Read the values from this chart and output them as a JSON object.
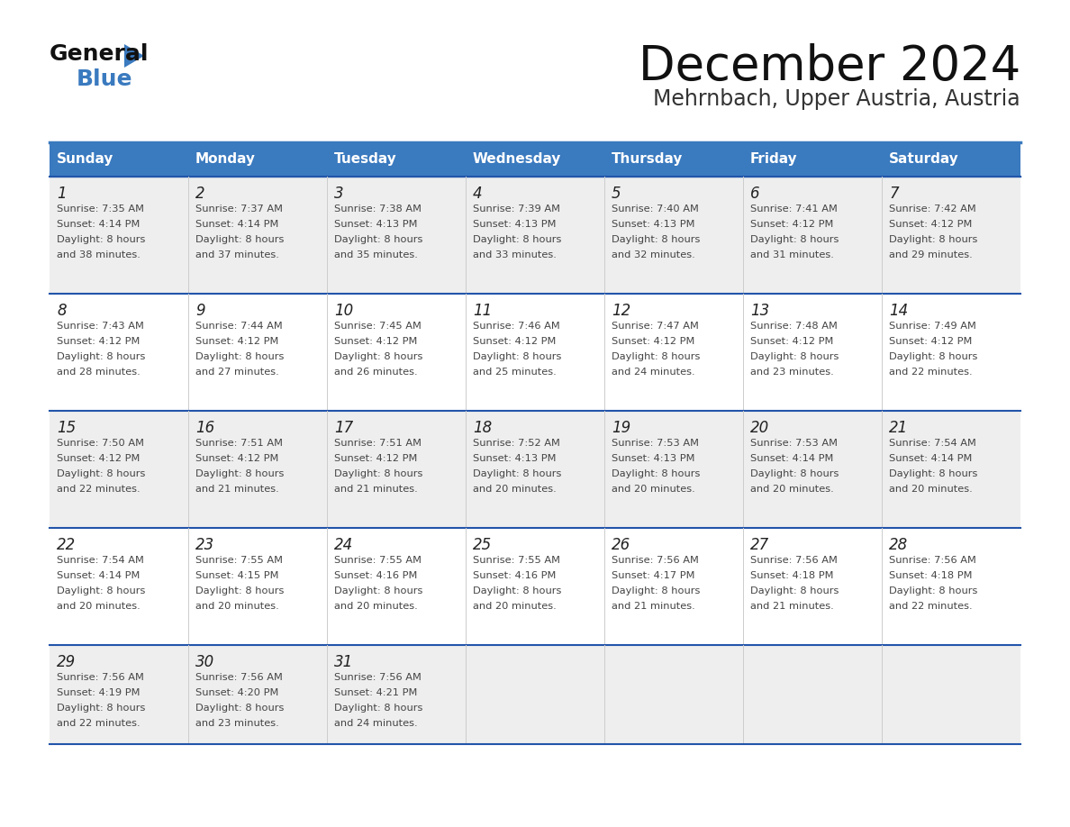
{
  "title": "December 2024",
  "subtitle": "Mehrnbach, Upper Austria, Austria",
  "days_of_week": [
    "Sunday",
    "Monday",
    "Tuesday",
    "Wednesday",
    "Thursday",
    "Friday",
    "Saturday"
  ],
  "header_bg_color": "#3a7abf",
  "header_text_color": "#ffffff",
  "cell_bg_white": "#ffffff",
  "cell_bg_gray": "#eeeeee",
  "row_separator_color": "#2255aa",
  "grid_line_color": "#cccccc",
  "text_color": "#444444",
  "day_num_color": "#222222",
  "title_color": "#111111",
  "subtitle_color": "#333333",
  "calendar_data": [
    [
      {
        "day": 1,
        "sunrise": "7:35 AM",
        "sunset": "4:14 PM",
        "daylight_hours": 8,
        "daylight_minutes": 38
      },
      {
        "day": 2,
        "sunrise": "7:37 AM",
        "sunset": "4:14 PM",
        "daylight_hours": 8,
        "daylight_minutes": 37
      },
      {
        "day": 3,
        "sunrise": "7:38 AM",
        "sunset": "4:13 PM",
        "daylight_hours": 8,
        "daylight_minutes": 35
      },
      {
        "day": 4,
        "sunrise": "7:39 AM",
        "sunset": "4:13 PM",
        "daylight_hours": 8,
        "daylight_minutes": 33
      },
      {
        "day": 5,
        "sunrise": "7:40 AM",
        "sunset": "4:13 PM",
        "daylight_hours": 8,
        "daylight_minutes": 32
      },
      {
        "day": 6,
        "sunrise": "7:41 AM",
        "sunset": "4:12 PM",
        "daylight_hours": 8,
        "daylight_minutes": 31
      },
      {
        "day": 7,
        "sunrise": "7:42 AM",
        "sunset": "4:12 PM",
        "daylight_hours": 8,
        "daylight_minutes": 29
      }
    ],
    [
      {
        "day": 8,
        "sunrise": "7:43 AM",
        "sunset": "4:12 PM",
        "daylight_hours": 8,
        "daylight_minutes": 28
      },
      {
        "day": 9,
        "sunrise": "7:44 AM",
        "sunset": "4:12 PM",
        "daylight_hours": 8,
        "daylight_minutes": 27
      },
      {
        "day": 10,
        "sunrise": "7:45 AM",
        "sunset": "4:12 PM",
        "daylight_hours": 8,
        "daylight_minutes": 26
      },
      {
        "day": 11,
        "sunrise": "7:46 AM",
        "sunset": "4:12 PM",
        "daylight_hours": 8,
        "daylight_minutes": 25
      },
      {
        "day": 12,
        "sunrise": "7:47 AM",
        "sunset": "4:12 PM",
        "daylight_hours": 8,
        "daylight_minutes": 24
      },
      {
        "day": 13,
        "sunrise": "7:48 AM",
        "sunset": "4:12 PM",
        "daylight_hours": 8,
        "daylight_minutes": 23
      },
      {
        "day": 14,
        "sunrise": "7:49 AM",
        "sunset": "4:12 PM",
        "daylight_hours": 8,
        "daylight_minutes": 22
      }
    ],
    [
      {
        "day": 15,
        "sunrise": "7:50 AM",
        "sunset": "4:12 PM",
        "daylight_hours": 8,
        "daylight_minutes": 22
      },
      {
        "day": 16,
        "sunrise": "7:51 AM",
        "sunset": "4:12 PM",
        "daylight_hours": 8,
        "daylight_minutes": 21
      },
      {
        "day": 17,
        "sunrise": "7:51 AM",
        "sunset": "4:12 PM",
        "daylight_hours": 8,
        "daylight_minutes": 21
      },
      {
        "day": 18,
        "sunrise": "7:52 AM",
        "sunset": "4:13 PM",
        "daylight_hours": 8,
        "daylight_minutes": 20
      },
      {
        "day": 19,
        "sunrise": "7:53 AM",
        "sunset": "4:13 PM",
        "daylight_hours": 8,
        "daylight_minutes": 20
      },
      {
        "day": 20,
        "sunrise": "7:53 AM",
        "sunset": "4:14 PM",
        "daylight_hours": 8,
        "daylight_minutes": 20
      },
      {
        "day": 21,
        "sunrise": "7:54 AM",
        "sunset": "4:14 PM",
        "daylight_hours": 8,
        "daylight_minutes": 20
      }
    ],
    [
      {
        "day": 22,
        "sunrise": "7:54 AM",
        "sunset": "4:14 PM",
        "daylight_hours": 8,
        "daylight_minutes": 20
      },
      {
        "day": 23,
        "sunrise": "7:55 AM",
        "sunset": "4:15 PM",
        "daylight_hours": 8,
        "daylight_minutes": 20
      },
      {
        "day": 24,
        "sunrise": "7:55 AM",
        "sunset": "4:16 PM",
        "daylight_hours": 8,
        "daylight_minutes": 20
      },
      {
        "day": 25,
        "sunrise": "7:55 AM",
        "sunset": "4:16 PM",
        "daylight_hours": 8,
        "daylight_minutes": 20
      },
      {
        "day": 26,
        "sunrise": "7:56 AM",
        "sunset": "4:17 PM",
        "daylight_hours": 8,
        "daylight_minutes": 21
      },
      {
        "day": 27,
        "sunrise": "7:56 AM",
        "sunset": "4:18 PM",
        "daylight_hours": 8,
        "daylight_minutes": 21
      },
      {
        "day": 28,
        "sunrise": "7:56 AM",
        "sunset": "4:18 PM",
        "daylight_hours": 8,
        "daylight_minutes": 22
      }
    ],
    [
      {
        "day": 29,
        "sunrise": "7:56 AM",
        "sunset": "4:19 PM",
        "daylight_hours": 8,
        "daylight_minutes": 22
      },
      {
        "day": 30,
        "sunrise": "7:56 AM",
        "sunset": "4:20 PM",
        "daylight_hours": 8,
        "daylight_minutes": 23
      },
      {
        "day": 31,
        "sunrise": "7:56 AM",
        "sunset": "4:21 PM",
        "daylight_hours": 8,
        "daylight_minutes": 24
      },
      null,
      null,
      null,
      null
    ]
  ]
}
